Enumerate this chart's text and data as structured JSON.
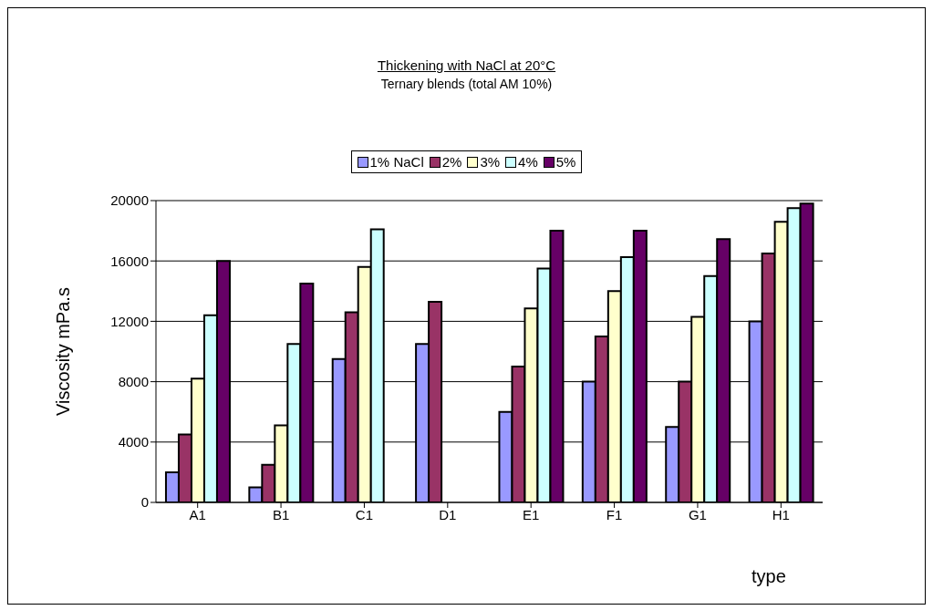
{
  "chart_data": {
    "type": "bar",
    "title": "Thickening with NaCl at 20°C",
    "subtitle": "Ternary blends (total AM 10%)",
    "xlabel": "type",
    "ylabel": "Viscosity mPa.s",
    "categories": [
      "A1",
      "B1",
      "C1",
      "D1",
      "E1",
      "F1",
      "G1",
      "H1"
    ],
    "series": [
      {
        "name": "1% NaCl",
        "color": "#9999ff",
        "values": [
          2000,
          1000,
          9500,
          10500,
          6000,
          8000,
          5000,
          12000
        ]
      },
      {
        "name": "2%",
        "color": "#993366",
        "values": [
          4500,
          2500,
          12600,
          13300,
          9000,
          11000,
          8000,
          16500
        ]
      },
      {
        "name": "3%",
        "color": "#ffffcc",
        "values": [
          8200,
          5100,
          15600,
          null,
          12850,
          14000,
          12300,
          18600
        ]
      },
      {
        "name": "4%",
        "color": "#ccffff",
        "values": [
          12400,
          10500,
          18100,
          null,
          15500,
          16250,
          15000,
          19500
        ]
      },
      {
        "name": "5%",
        "color": "#660066",
        "values": [
          16000,
          14500,
          null,
          null,
          18000,
          18000,
          17450,
          19800
        ]
      }
    ],
    "ylim": [
      0,
      20000
    ],
    "yticks": [
      0,
      4000,
      8000,
      12000,
      16000,
      20000
    ],
    "grid": "y",
    "legend": "top"
  }
}
